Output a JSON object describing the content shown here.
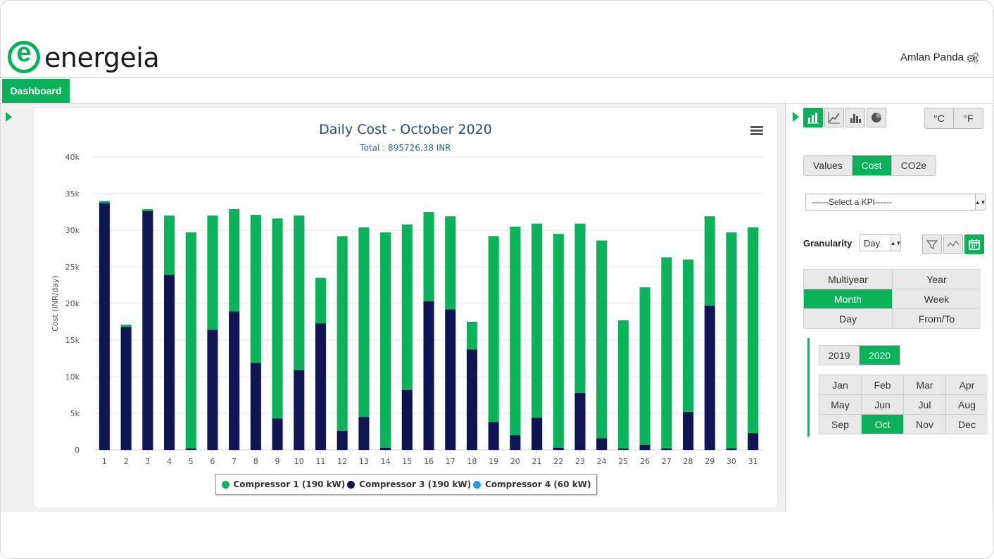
{
  "header": {
    "logo_text": "energeia",
    "user_name": "Amlan Panda"
  },
  "nav": {
    "dashboard_label": "Dashboard"
  },
  "colors": {
    "brand": "#09b15a",
    "compressor1": "#0bb15b",
    "compressor3": "#0e1552",
    "compressor4": "#2b9be8"
  },
  "chart_data": {
    "type": "bar",
    "stacked": true,
    "title": "Daily Cost - October 2020",
    "subtitle": "Total : 895726.38 INR",
    "xlabel": "",
    "ylabel": "Cost (INR/day)",
    "ylim": [
      0,
      40000
    ],
    "yticks": [
      "0",
      "5k",
      "10k",
      "15k",
      "20k",
      "25k",
      "30k",
      "35k",
      "40k"
    ],
    "grid": true,
    "legend_position": "bottom",
    "categories": [
      "1",
      "2",
      "3",
      "4",
      "5",
      "6",
      "7",
      "8",
      "9",
      "10",
      "11",
      "12",
      "13",
      "14",
      "15",
      "16",
      "17",
      "18",
      "19",
      "20",
      "21",
      "22",
      "23",
      "24",
      "25",
      "26",
      "27",
      "28",
      "29",
      "30",
      "31"
    ],
    "series": [
      {
        "name": "Compressor 3 (190 kW)",
        "values": [
          33700,
          16800,
          32600,
          23900,
          200,
          16400,
          18900,
          11900,
          4300,
          10900,
          17300,
          2600,
          4500,
          300,
          8200,
          20300,
          19200,
          13700,
          3800,
          2000,
          4400,
          300,
          7800,
          1600,
          200,
          700,
          200,
          5200,
          19700,
          200,
          2300
        ]
      },
      {
        "name": "Compressor 1 (190 kW)",
        "values": [
          300,
          300,
          300,
          8100,
          29500,
          15600,
          14000,
          20200,
          27300,
          21100,
          6200,
          26600,
          25900,
          29400,
          22600,
          12200,
          12700,
          3800,
          25400,
          28500,
          26500,
          29200,
          23100,
          27000,
          17500,
          21500,
          26100,
          20800,
          12200,
          29500,
          28100
        ]
      },
      {
        "name": "Compressor 4 (60 kW)",
        "values": [
          0,
          0,
          0,
          0,
          0,
          0,
          0,
          0,
          0,
          0,
          0,
          0,
          0,
          0,
          0,
          0,
          0,
          0,
          0,
          0,
          0,
          0,
          0,
          0,
          0,
          0,
          0,
          0,
          0,
          0,
          0
        ]
      }
    ],
    "legend": [
      "Compressor 1 (190 kW)",
      "Compressor 3 (190 kW)",
      "Compressor 4 (60 kW)"
    ]
  },
  "side": {
    "chart_types": [
      "stacked-bar-chart-icon",
      "line-chart-icon",
      "bar-chart-icon",
      "pie-chart-icon"
    ],
    "units": [
      "°C",
      "°F"
    ],
    "value_tabs": [
      "Values",
      "Cost",
      "CO2e"
    ],
    "value_tab_active": "Cost",
    "kpi_placeholder": "------Select a KPI------",
    "granularity_label": "Granularity",
    "granularity_value": "Day",
    "period_tabs": [
      "Multiyear",
      "Year",
      "Month",
      "Week",
      "Day",
      "From/To"
    ],
    "period_tab_active": "Month",
    "years": [
      "2019",
      "2020"
    ],
    "year_active": "2020",
    "months": [
      "Jan",
      "Feb",
      "Mar",
      "Apr",
      "May",
      "Jun",
      "Jul",
      "Aug",
      "Sep",
      "Oct",
      "Nov",
      "Dec"
    ],
    "month_active": "Oct"
  }
}
